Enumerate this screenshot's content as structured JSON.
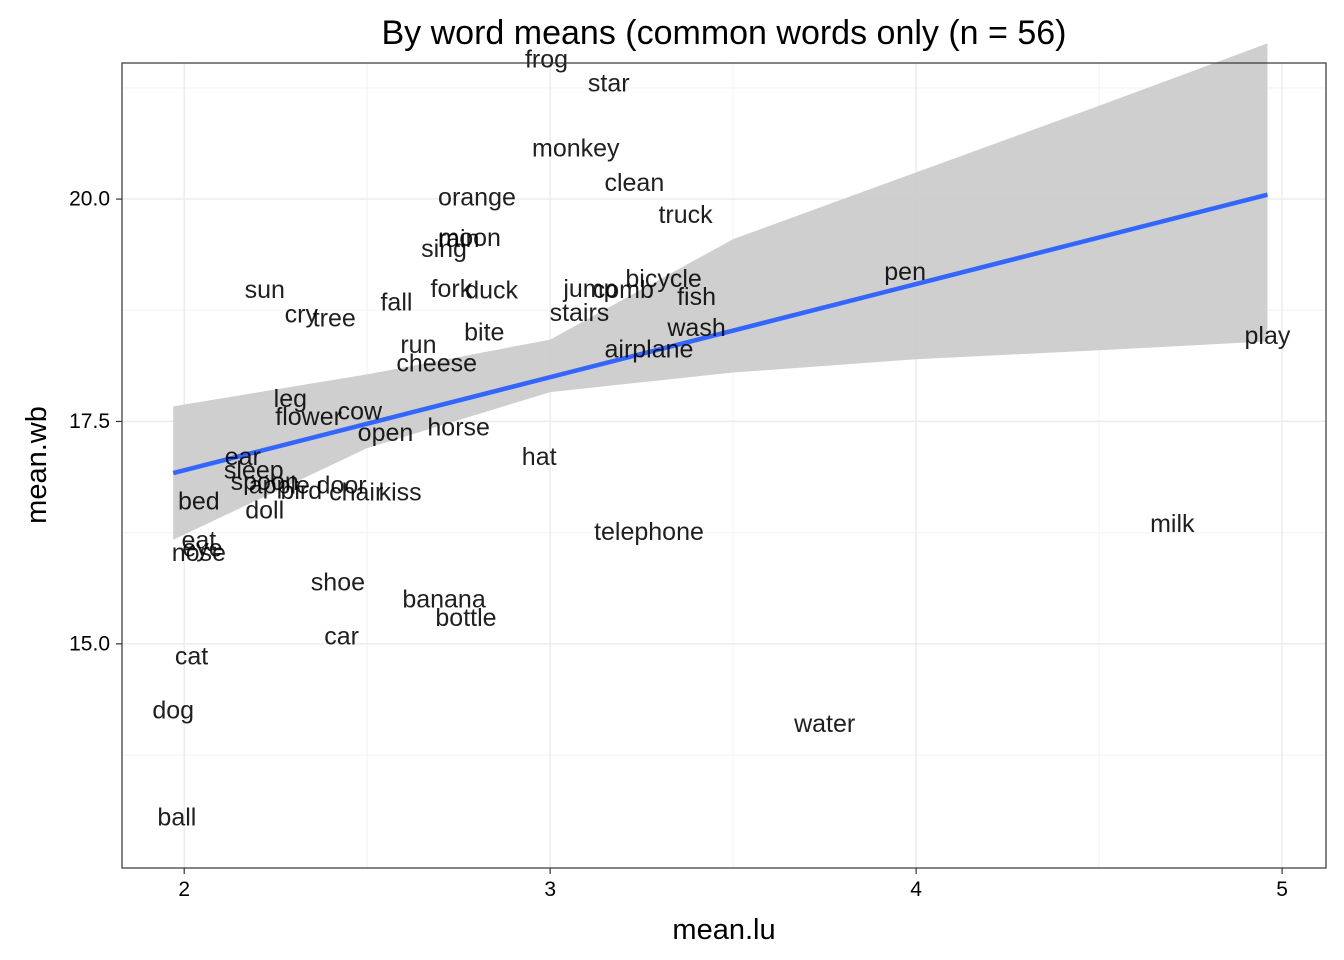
{
  "chart_data": {
    "type": "scatter",
    "title": "By word means (common words only (n = 56)",
    "xlabel": "mean.lu",
    "ylabel": "mean.wb",
    "xlim": [
      1.83,
      5.12
    ],
    "ylim": [
      12.48,
      21.53
    ],
    "x_ticks": [
      2,
      3,
      4,
      5
    ],
    "x_tick_labels": [
      "2",
      "3",
      "4",
      "5"
    ],
    "x_minor_ticks": [
      2.5,
      3.5,
      4.5
    ],
    "y_ticks": [
      15.0,
      17.5,
      20.0
    ],
    "y_tick_labels": [
      "15.0",
      "17.5",
      "20.0"
    ],
    "y_minor_ticks": [
      13.75,
      16.25,
      18.75,
      21.25
    ],
    "grid": true,
    "points": [
      {
        "label": "frog",
        "x": 2.99,
        "y": 21.57
      },
      {
        "label": "star",
        "x": 3.16,
        "y": 21.3
      },
      {
        "label": "monkey",
        "x": 3.07,
        "y": 20.57
      },
      {
        "label": "clean",
        "x": 3.23,
        "y": 20.18
      },
      {
        "label": "orange",
        "x": 2.8,
        "y": 20.02
      },
      {
        "label": "truck",
        "x": 3.37,
        "y": 19.82
      },
      {
        "label": "moon",
        "x": 2.78,
        "y": 19.56
      },
      {
        "label": "rain",
        "x": 2.75,
        "y": 19.55
      },
      {
        "label": "sing",
        "x": 2.71,
        "y": 19.44
      },
      {
        "label": "bicycle",
        "x": 3.31,
        "y": 19.1
      },
      {
        "label": "sun",
        "x": 2.22,
        "y": 18.98
      },
      {
        "label": "fork",
        "x": 2.73,
        "y": 18.99
      },
      {
        "label": "duck",
        "x": 2.84,
        "y": 18.97
      },
      {
        "label": "jump",
        "x": 3.11,
        "y": 18.99
      },
      {
        "label": "comb",
        "x": 3.2,
        "y": 18.98
      },
      {
        "label": "fish",
        "x": 3.4,
        "y": 18.9
      },
      {
        "label": "fall",
        "x": 2.58,
        "y": 18.84
      },
      {
        "label": "stairs",
        "x": 3.08,
        "y": 18.72
      },
      {
        "label": "cry",
        "x": 2.32,
        "y": 18.7
      },
      {
        "label": "tree",
        "x": 2.41,
        "y": 18.66
      },
      {
        "label": "wash",
        "x": 3.4,
        "y": 18.55
      },
      {
        "label": "bite",
        "x": 2.82,
        "y": 18.5
      },
      {
        "label": "run",
        "x": 2.64,
        "y": 18.36
      },
      {
        "label": "airplane",
        "x": 3.27,
        "y": 18.31
      },
      {
        "label": "cheese",
        "x": 2.69,
        "y": 18.15
      },
      {
        "label": "leg",
        "x": 2.29,
        "y": 17.75
      },
      {
        "label": "cow",
        "x": 2.48,
        "y": 17.61
      },
      {
        "label": "flower",
        "x": 2.34,
        "y": 17.55
      },
      {
        "label": "horse",
        "x": 2.75,
        "y": 17.43
      },
      {
        "label": "open",
        "x": 2.55,
        "y": 17.37
      },
      {
        "label": "hat",
        "x": 2.97,
        "y": 17.1
      },
      {
        "label": "ear",
        "x": 2.16,
        "y": 17.1
      },
      {
        "label": "sleep",
        "x": 2.19,
        "y": 16.95
      },
      {
        "label": "spoon",
        "x": 2.22,
        "y": 16.82
      },
      {
        "label": "apple",
        "x": 2.26,
        "y": 16.78
      },
      {
        "label": "bird",
        "x": 2.32,
        "y": 16.72
      },
      {
        "label": "door",
        "x": 2.43,
        "y": 16.78
      },
      {
        "label": "chair",
        "x": 2.47,
        "y": 16.7
      },
      {
        "label": "kiss",
        "x": 2.59,
        "y": 16.7
      },
      {
        "label": "bed",
        "x": 2.04,
        "y": 16.6
      },
      {
        "label": "doll",
        "x": 2.22,
        "y": 16.5
      },
      {
        "label": "telephone",
        "x": 3.27,
        "y": 16.26
      },
      {
        "label": "milk",
        "x": 4.7,
        "y": 16.35
      },
      {
        "label": "play",
        "x": 4.96,
        "y": 18.46
      },
      {
        "label": "pen",
        "x": 3.97,
        "y": 19.18
      },
      {
        "label": "eat",
        "x": 2.04,
        "y": 16.16
      },
      {
        "label": "eye",
        "x": 2.05,
        "y": 16.07
      },
      {
        "label": "nose",
        "x": 2.04,
        "y": 16.02
      },
      {
        "label": "shoe",
        "x": 2.42,
        "y": 15.69
      },
      {
        "label": "banana",
        "x": 2.71,
        "y": 15.5
      },
      {
        "label": "bottle",
        "x": 2.77,
        "y": 15.29
      },
      {
        "label": "car",
        "x": 2.43,
        "y": 15.08
      },
      {
        "label": "cat",
        "x": 2.02,
        "y": 14.86
      },
      {
        "label": "dog",
        "x": 1.97,
        "y": 14.25
      },
      {
        "label": "water",
        "x": 3.75,
        "y": 14.1
      },
      {
        "label": "ball",
        "x": 1.98,
        "y": 13.05
      }
    ],
    "fit": {
      "x_start": 1.97,
      "y_start": 16.92,
      "x_end": 4.96,
      "y_end": 20.05,
      "band": [
        {
          "x": 1.97,
          "lower": 16.17,
          "upper": 17.67
        },
        {
          "x": 2.5,
          "lower": 17.2,
          "upper": 18.03
        },
        {
          "x": 3.0,
          "lower": 17.83,
          "upper": 18.42
        },
        {
          "x": 3.5,
          "lower": 18.05,
          "upper": 19.55
        },
        {
          "x": 4.0,
          "lower": 18.2,
          "upper": 20.3
        },
        {
          "x": 4.5,
          "lower": 18.3,
          "upper": 21.05
        },
        {
          "x": 4.96,
          "lower": 18.4,
          "upper": 21.75
        }
      ],
      "line_color": "#3366FF",
      "band_color": "#CCCCCC"
    },
    "colors": {
      "panel_border": "#333333",
      "grid_major": "#EBEBEB",
      "grid_minor": "#F5F5F5",
      "point_label": "#000000",
      "tick_label": "#000000"
    }
  }
}
